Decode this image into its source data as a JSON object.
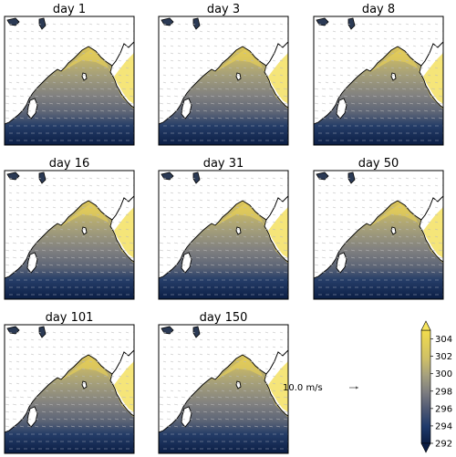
{
  "panels": [
    {
      "title": "day 1"
    },
    {
      "title": "day 3"
    },
    {
      "title": "day 8"
    },
    {
      "title": "day 16"
    },
    {
      "title": "day 31"
    },
    {
      "title": "day 50"
    },
    {
      "title": "day 101"
    },
    {
      "title": "day 150"
    }
  ],
  "colorbar": {
    "ticks": [
      "292",
      "294",
      "296",
      "298",
      "300",
      "302",
      "304"
    ],
    "min": 292,
    "max": 305,
    "colors": [
      "#0b1e45",
      "#1f3a6b",
      "#4e5873",
      "#7d7d80",
      "#a5a07e",
      "#cfc067",
      "#f2dc4c",
      "#f7e55d"
    ],
    "extend": "both"
  },
  "quiver_key": {
    "label": "10.0 m/s"
  },
  "colors": {
    "land": "#ffffff",
    "coast": "#000000",
    "arrows": "#bbbbbb"
  }
}
